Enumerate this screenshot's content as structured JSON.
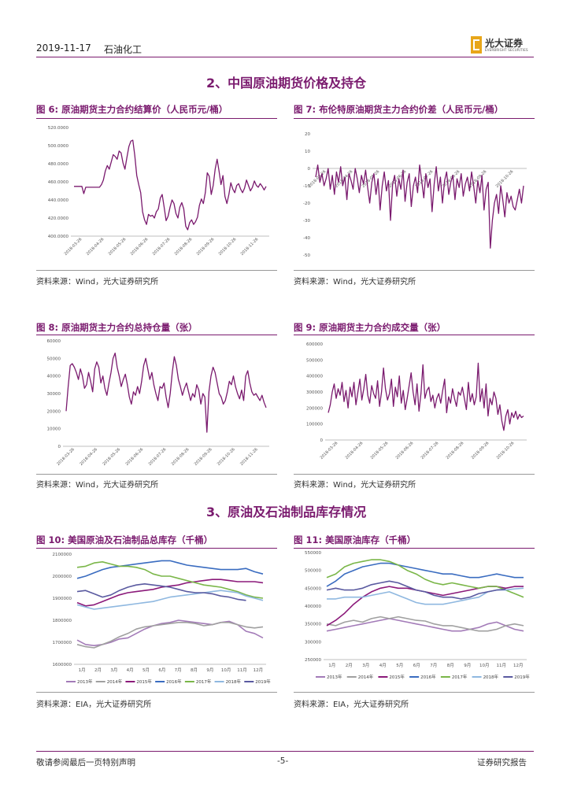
{
  "header": {
    "date": "2019-11-17",
    "sector": "石油化工",
    "logo_cn": "光大证券",
    "logo_en": "EVERBRIGHT SECURITIES"
  },
  "section2": {
    "title": "2、中国原油期货价格及持仓"
  },
  "section3": {
    "title": "3、原油及石油制品库存情况"
  },
  "figures": {
    "fig6": {
      "title": "图 6:   原油期货主力合约结算价（人民币元/桶）",
      "source": "资料来源：Wind，光大证券研究所"
    },
    "fig7": {
      "title": "图 7:   布伦特原油期货主力合约价差（人民币元/桶）",
      "source": "资料来源：Wind，光大证券研究所"
    },
    "fig8": {
      "title": "图 8:   原油期货主力合约总持仓量（张）",
      "source": "资料来源：Wind，光大证券研究所"
    },
    "fig9": {
      "title": "图 9:   原油期货主力合约成交量（张）",
      "source": "资料来源：Wind，光大证券研究所"
    },
    "fig10": {
      "title": "图 10:   美国原油及石油制品总库存（千桶）",
      "source": "资料来源：EIA，光大证券研究所"
    },
    "fig11": {
      "title": "图 11:   美国原油库存（千桶）",
      "source": "资料来源：EIA，光大证券研究所"
    }
  },
  "footer": {
    "left": "敬请参阅最后一页特别声明",
    "center": "-5-",
    "right": "证券研究报告"
  },
  "colors": {
    "purple": "#7a1a6e",
    "y2013": "#a37bb8",
    "y2014": "#a0a0a0",
    "y2015": "#8b1a7a",
    "y2016": "#3a6cc0",
    "y2017": "#7ab648",
    "y2018": "#8fb8e0",
    "y2019": "#5a5aa0"
  },
  "chart_data": [
    {
      "id": "fig6",
      "type": "line",
      "title": "原油期货主力合约结算价（人民币元/桶）",
      "yticks": [
        "520.0000",
        "500.0000",
        "480.0000",
        "460.0000",
        "440.0000",
        "420.0000",
        "400.0000"
      ],
      "ylim": [
        400,
        520
      ],
      "xticks": [
        "2018-03-26",
        "2018-04-26",
        "2018-05-26",
        "2018-06-26",
        "2018-07-26",
        "2018-08-26",
        "2018-09-26",
        "2018-10-26",
        "2018-11-26"
      ],
      "series": [
        {
          "name": "结算价",
          "values": [
            455,
            455,
            455,
            455,
            455,
            447,
            454,
            454,
            454,
            454,
            454,
            454,
            454,
            454,
            457,
            462,
            472,
            478,
            474,
            482,
            490,
            488,
            485,
            494,
            492,
            481,
            474,
            487,
            499,
            505,
            506,
            489,
            467,
            457,
            448,
            427,
            418,
            413,
            424,
            422,
            423,
            420,
            427,
            430,
            442,
            446,
            432,
            417,
            422,
            432,
            440,
            436,
            425,
            420,
            432,
            437,
            430,
            411,
            407,
            415,
            418,
            413,
            416,
            421,
            434,
            441,
            436,
            448,
            470,
            466,
            446,
            456,
            474,
            485,
            472,
            457,
            467,
            444,
            436,
            446,
            459,
            452,
            448,
            456,
            458,
            452,
            448,
            453,
            462,
            456,
            450,
            454,
            461,
            456,
            454,
            458,
            455,
            451,
            455
          ]
        }
      ]
    },
    {
      "id": "fig7",
      "type": "line",
      "title": "布伦特原油期货主力合约价差（人民币元/桶）",
      "yticks": [
        "20",
        "10",
        "0",
        "-10",
        "-20",
        "-30",
        "-40",
        "-50"
      ],
      "ylim": [
        -50,
        20
      ],
      "xticks": [
        "2018-03-26",
        "2018-04-26",
        "2018-05-26",
        "2018-06-26",
        "2018-07-26",
        "2018-08-26",
        "2018-09-26",
        "2018-10-26"
      ],
      "series": [
        {
          "name": "价差",
          "values": [
            -5,
            2,
            -8,
            -3,
            -10,
            -6,
            0,
            -12,
            -4,
            -15,
            -2,
            -8,
            1,
            -10,
            -5,
            -18,
            -3,
            -7,
            -12,
            0,
            -6,
            -14,
            -4,
            -9,
            -1,
            -11,
            -20,
            -8,
            -3,
            -15,
            -6,
            -24,
            -10,
            -2,
            -13,
            -7,
            -30,
            -9,
            -4,
            -16,
            -6,
            -12,
            -1,
            -19,
            -8,
            -3,
            -22,
            -10,
            -5,
            -14,
            2,
            -7,
            -17,
            -3,
            -11,
            -6,
            -25,
            -9,
            1,
            -13,
            -5,
            -20,
            -7,
            -2,
            -15,
            -8,
            -4,
            -18,
            -6,
            -11,
            -3,
            -16,
            -9,
            -5,
            -13,
            -2,
            -10,
            -20,
            -7,
            -14,
            -4,
            -24,
            -12,
            -8,
            -46,
            -30,
            -20,
            -15,
            -26,
            -10,
            -18,
            -28,
            -14,
            -20,
            -16,
            -22,
            -24,
            -18,
            -12,
            -20,
            -10
          ]
        }
      ]
    },
    {
      "id": "fig8",
      "type": "line",
      "title": "原油期货主力合约总持仓量（张）",
      "yticks": [
        "60000",
        "50000",
        "40000",
        "30000",
        "20000",
        "10000",
        "0"
      ],
      "ylim": [
        0,
        60000
      ],
      "xticks": [
        "2018-03-26",
        "2018-04-26",
        "2018-05-26",
        "2018-06-26",
        "2018-07-26",
        "2018-08-26",
        "2018-09-26",
        "2018-10-26",
        "2018-11-26"
      ],
      "series": [
        {
          "name": "持仓量",
          "values": [
            20000,
            34000,
            46000,
            47000,
            45000,
            42000,
            38000,
            44000,
            40000,
            33000,
            35000,
            42000,
            37000,
            31000,
            44000,
            48000,
            45000,
            36000,
            40000,
            33000,
            29000,
            36000,
            42000,
            50000,
            53000,
            45000,
            40000,
            34000,
            38000,
            41000,
            35000,
            28000,
            24000,
            31000,
            29000,
            34000,
            30000,
            37000,
            46000,
            50000,
            44000,
            38000,
            42000,
            35000,
            30000,
            26000,
            34000,
            33000,
            36000,
            28000,
            22000,
            30000,
            42000,
            51000,
            46000,
            38000,
            34000,
            29000,
            33000,
            36000,
            31000,
            26000,
            30000,
            28000,
            35000,
            32000,
            24000,
            30000,
            28000,
            8000,
            31000,
            40000,
            45000,
            42000,
            36000,
            30000,
            28000,
            24000,
            26000,
            31000,
            37000,
            35000,
            40000,
            34000,
            30000,
            27000,
            32000,
            26000,
            40000,
            43000,
            36000,
            31000,
            29000,
            30000,
            28000,
            26000,
            29000,
            25000,
            22000
          ]
        }
      ]
    },
    {
      "id": "fig9",
      "type": "line",
      "title": "原油期货主力合约成交量（张）",
      "yticks": [
        "600000",
        "500000",
        "400000",
        "300000",
        "200000",
        "100000",
        "0"
      ],
      "ylim": [
        0,
        600000
      ],
      "xticks": [
        "2018-03-26",
        "2018-04-26",
        "2018-05-26",
        "2018-06-26",
        "2018-07-26",
        "2018-08-26",
        "2018-09-26",
        "2018-10-26"
      ],
      "series": [
        {
          "name": "成交量",
          "values": [
            170000,
            220000,
            300000,
            350000,
            260000,
            320000,
            280000,
            360000,
            240000,
            310000,
            200000,
            330000,
            270000,
            360000,
            220000,
            300000,
            380000,
            250000,
            320000,
            410000,
            280000,
            230000,
            340000,
            290000,
            260000,
            370000,
            210000,
            300000,
            450000,
            320000,
            250000,
            290000,
            380000,
            210000,
            330000,
            270000,
            400000,
            230000,
            310000,
            190000,
            260000,
            340000,
            420000,
            300000,
            220000,
            350000,
            180000,
            290000,
            470000,
            260000,
            310000,
            330000,
            240000,
            280000,
            200000,
            260000,
            290000,
            230000,
            310000,
            380000,
            170000,
            270000,
            230000,
            320000,
            260000,
            210000,
            300000,
            280000,
            330000,
            260000,
            190000,
            360000,
            240000,
            290000,
            220000,
            270000,
            480000,
            240000,
            320000,
            200000,
            350000,
            150000,
            260000,
            220000,
            300000,
            260000,
            160000,
            220000,
            120000,
            60000,
            150000,
            190000,
            100000,
            170000,
            140000,
            180000,
            130000,
            160000,
            140000,
            150000
          ]
        }
      ]
    },
    {
      "id": "fig10",
      "type": "line",
      "title": "美国原油及石油制品总库存（千桶）",
      "yticks": [
        "2100000",
        "2000000",
        "1900000",
        "1800000",
        "1700000",
        "1600000"
      ],
      "ylim": [
        1600000,
        2100000
      ],
      "xticks": [
        "1月",
        "2月",
        "3月",
        "4月",
        "5月",
        "6月",
        "7月",
        "8月",
        "9月",
        "10月",
        "11月",
        "12月"
      ],
      "series": [
        {
          "name": "2013年",
          "values": [
            1710000,
            1690000,
            1685000,
            1690000,
            1700000,
            1715000,
            1720000,
            1740000,
            1760000,
            1775000,
            1785000,
            1790000,
            1800000,
            1795000,
            1790000,
            1785000,
            1780000,
            1790000,
            1795000,
            1780000,
            1750000,
            1740000,
            1720000
          ]
        },
        {
          "name": "2014年",
          "values": [
            1690000,
            1680000,
            1675000,
            1690000,
            1705000,
            1725000,
            1740000,
            1760000,
            1770000,
            1775000,
            1780000,
            1785000,
            1790000,
            1790000,
            1785000,
            1775000,
            1780000,
            1790000,
            1790000,
            1780000,
            1770000,
            1765000,
            1770000
          ]
        },
        {
          "name": "2015年",
          "values": [
            1880000,
            1865000,
            1870000,
            1885000,
            1900000,
            1915000,
            1925000,
            1930000,
            1935000,
            1940000,
            1950000,
            1955000,
            1960000,
            1970000,
            1975000,
            1980000,
            1985000,
            1985000,
            1980000,
            1975000,
            1975000,
            1975000,
            1970000
          ]
        },
        {
          "name": "2016年",
          "values": [
            1990000,
            2000000,
            2015000,
            2030000,
            2040000,
            2045000,
            2050000,
            2055000,
            2060000,
            2065000,
            2070000,
            2070000,
            2060000,
            2050000,
            2045000,
            2040000,
            2035000,
            2030000,
            2030000,
            2030000,
            2035000,
            2020000,
            2010000
          ]
        },
        {
          "name": "2017年",
          "values": [
            2040000,
            2045000,
            2060000,
            2065000,
            2055000,
            2045000,
            2045000,
            2040000,
            2030000,
            2010000,
            2000000,
            2000000,
            1990000,
            1980000,
            1970000,
            1960000,
            1955000,
            1950000,
            1940000,
            1930000,
            1915000,
            1905000,
            1900000
          ]
        },
        {
          "name": "2018年",
          "values": [
            1870000,
            1860000,
            1850000,
            1855000,
            1860000,
            1865000,
            1870000,
            1875000,
            1880000,
            1885000,
            1895000,
            1905000,
            1910000,
            1915000,
            1920000,
            1925000,
            1930000,
            1935000,
            1930000,
            1925000,
            1910000,
            1900000,
            1890000
          ]
        },
        {
          "name": "2019年",
          "values": [
            1930000,
            1935000,
            1920000,
            1905000,
            1915000,
            1935000,
            1950000,
            1960000,
            1965000,
            1960000,
            1955000,
            1950000,
            1940000,
            1930000,
            1925000,
            1925000,
            1920000,
            1910000,
            1905000,
            1895000,
            1890000
          ]
        }
      ]
    },
    {
      "id": "fig11",
      "type": "line",
      "title": "美国原油库存（千桶）",
      "yticks": [
        "550000",
        "500000",
        "450000",
        "400000",
        "350000",
        "300000",
        "250000"
      ],
      "ylim": [
        250000,
        550000
      ],
      "xticks": [
        "1月",
        "2月",
        "3月",
        "4月",
        "5月",
        "6月",
        "7月",
        "8月",
        "9月",
        "10月",
        "11月",
        "12月"
      ],
      "series": [
        {
          "name": "2013年",
          "values": [
            330000,
            335000,
            340000,
            345000,
            350000,
            355000,
            360000,
            365000,
            360000,
            355000,
            350000,
            345000,
            340000,
            335000,
            330000,
            330000,
            335000,
            340000,
            350000,
            355000,
            345000,
            335000,
            330000
          ]
        },
        {
          "name": "2014年",
          "values": [
            350000,
            345000,
            355000,
            360000,
            355000,
            365000,
            370000,
            365000,
            370000,
            365000,
            360000,
            358000,
            350000,
            345000,
            345000,
            340000,
            335000,
            330000,
            330000,
            335000,
            345000,
            350000,
            345000
          ]
        },
        {
          "name": "2015年",
          "values": [
            345000,
            360000,
            380000,
            405000,
            425000,
            440000,
            450000,
            455000,
            450000,
            450000,
            445000,
            440000,
            435000,
            430000,
            435000,
            440000,
            445000,
            450000,
            455000,
            455000,
            450000,
            455000,
            455000
          ]
        },
        {
          "name": "2016年",
          "values": [
            455000,
            470000,
            490000,
            500000,
            510000,
            515000,
            520000,
            520000,
            515000,
            510000,
            505000,
            500000,
            495000,
            490000,
            490000,
            485000,
            480000,
            480000,
            485000,
            490000,
            485000,
            480000,
            480000
          ]
        },
        {
          "name": "2017年",
          "values": [
            480000,
            490000,
            510000,
            520000,
            525000,
            530000,
            530000,
            525000,
            515000,
            500000,
            490000,
            475000,
            465000,
            460000,
            465000,
            460000,
            455000,
            450000,
            455000,
            455000,
            445000,
            435000,
            425000
          ]
        },
        {
          "name": "2018年",
          "values": [
            420000,
            420000,
            425000,
            425000,
            425000,
            430000,
            435000,
            440000,
            430000,
            420000,
            410000,
            405000,
            405000,
            405000,
            410000,
            415000,
            420000,
            425000,
            440000,
            445000,
            445000,
            448000,
            450000
          ]
        },
        {
          "name": "2019年",
          "values": [
            445000,
            450000,
            445000,
            445000,
            450000,
            460000,
            465000,
            470000,
            465000,
            455000,
            445000,
            440000,
            430000,
            425000,
            425000,
            420000,
            425000,
            435000,
            440000,
            445000,
            447000
          ]
        }
      ]
    }
  ]
}
